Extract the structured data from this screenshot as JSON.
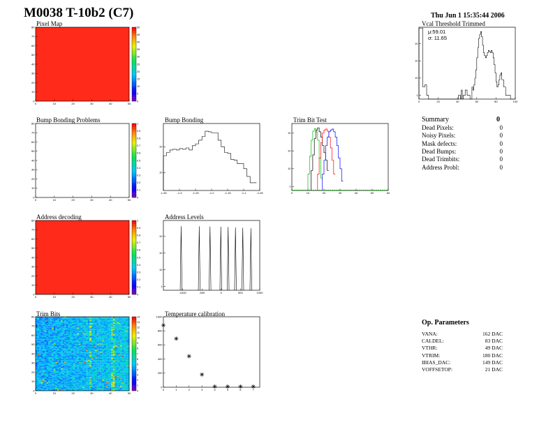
{
  "header": {
    "title": "M0038 T-10b2 (C7)",
    "date": "Thu Jun  1 15:35:44 2006"
  },
  "colors": {
    "map_red": "#ff2a1a",
    "line_black": "#000000",
    "trim_green": "#00c000",
    "trim_red": "#ff0000",
    "trim_blue": "#0000ff"
  },
  "chart_data": [
    {
      "id": "pixel_map",
      "type": "heatmap",
      "title": "Pixel Map",
      "x_ticks": [
        "0",
        "10",
        "20",
        "30",
        "40",
        "50"
      ],
      "y_ticks": [
        "0",
        "10",
        "20",
        "30",
        "40",
        "50",
        "60",
        "70",
        "80"
      ],
      "z_ticks": [
        "0",
        "5",
        "10",
        "15",
        "20",
        "25",
        "30",
        "35",
        "40",
        "45",
        "50"
      ],
      "uniform_value": 50
    },
    {
      "id": "vcal",
      "type": "line",
      "title": "Vcal Threshold Trimmed",
      "xlim": [
        0,
        100
      ],
      "log_y": true,
      "x_ticks": [
        "0",
        "20",
        "40",
        "60",
        "80",
        "100"
      ],
      "y_ticks": [
        "1",
        "10",
        "10",
        "10"
      ],
      "stats": [
        "μ:59.01",
        "σ: 11.65"
      ],
      "x": [
        0,
        3,
        4,
        6,
        8,
        10,
        13,
        16,
        18,
        21,
        25,
        28,
        30,
        31,
        33,
        35,
        36,
        38,
        41,
        43,
        44,
        45,
        46,
        48,
        50,
        53,
        55,
        56,
        57,
        58,
        59,
        60,
        61,
        62,
        63,
        64,
        65,
        66,
        67,
        68,
        69,
        70,
        71,
        72,
        73,
        74,
        75,
        76,
        77,
        78,
        79,
        80,
        81,
        82,
        83,
        84,
        85,
        86,
        88,
        90,
        92,
        95,
        100
      ],
      "y": [
        8000,
        8000,
        3,
        4,
        1,
        0,
        0,
        0,
        0,
        0,
        0,
        0,
        0,
        0,
        0,
        0,
        0,
        0,
        1,
        0,
        2,
        0,
        1,
        2,
        1,
        0,
        3,
        2,
        4,
        10,
        30,
        150,
        600,
        2000,
        3500,
        5000,
        2500,
        800,
        300,
        200,
        150,
        200,
        300,
        400,
        350,
        300,
        400,
        300,
        150,
        60,
        20,
        6,
        3,
        4,
        8,
        15,
        20,
        8,
        3,
        1,
        1,
        0,
        0
      ]
    },
    {
      "id": "bump_problems",
      "type": "heatmap",
      "title": "Bump Bonding Problems",
      "x_ticks": [
        "0",
        "10",
        "20",
        "30",
        "40",
        "50"
      ],
      "y_ticks": [
        "0",
        "10",
        "20",
        "30",
        "40",
        "50",
        "60",
        "70",
        "80"
      ],
      "z_ticks": [
        "0",
        "0.1",
        "0.2",
        "0.3",
        "0.4",
        "0.5",
        "0.6",
        "0.7",
        "0.8",
        "0.9",
        "1"
      ],
      "uniform_value": 0
    },
    {
      "id": "bump_bonding",
      "type": "line",
      "title": "Bump Bonding",
      "xlim": [
        -1.35,
        -1.05
      ],
      "log_y": true,
      "x_ticks": [
        "-1.35",
        "-1.3",
        "-1.25",
        "-1.2",
        "-1.15",
        "-1.1",
        "-1.05"
      ],
      "y_ticks": [
        "10",
        "10"
      ],
      "x": [
        -1.35,
        -1.34,
        -1.33,
        -1.32,
        -1.31,
        -1.3,
        -1.29,
        -1.28,
        -1.27,
        -1.26,
        -1.25,
        -1.24,
        -1.23,
        -1.22,
        -1.21,
        -1.2,
        -1.19,
        -1.18,
        -1.17,
        -1.16,
        -1.15,
        -1.14,
        -1.13,
        -1.12,
        -1.11,
        -1.1,
        -1.09,
        -1.08,
        -1.07
      ],
      "y": [
        45,
        60,
        75,
        80,
        75,
        85,
        80,
        90,
        75,
        110,
        130,
        180,
        250,
        400,
        380,
        350,
        350,
        180,
        100,
        60,
        55,
        32,
        30,
        22,
        22,
        14,
        7,
        4,
        4
      ]
    },
    {
      "id": "trim_bit_test",
      "type": "line",
      "title": "Trim Bit Test",
      "xlim": [
        0,
        60
      ],
      "log_y": true,
      "x_ticks": [
        "0",
        "10",
        "20",
        "30",
        "40",
        "50",
        "60"
      ],
      "y_ticks": [
        "1",
        "10",
        "10",
        "10"
      ],
      "series": [
        {
          "color": "green",
          "x": [
            10,
            11,
            12,
            13,
            14,
            15,
            16,
            17,
            18
          ],
          "y": [
            5,
            50,
            400,
            1300,
            1800,
            1200,
            400,
            40,
            3
          ]
        },
        {
          "color": "black",
          "x": [
            12,
            13,
            14,
            15,
            16,
            17,
            18,
            19,
            20,
            21,
            22
          ],
          "y": [
            8,
            60,
            500,
            1500,
            2000,
            1200,
            600,
            200,
            80,
            30,
            8
          ]
        },
        {
          "color": "red",
          "x": [
            16,
            17,
            18,
            19,
            20,
            21,
            22,
            23,
            24,
            25,
            26
          ],
          "y": [
            5,
            40,
            300,
            1000,
            1500,
            1700,
            1300,
            600,
            150,
            30,
            5
          ]
        },
        {
          "color": "blue",
          "x": [
            19,
            20,
            21,
            22,
            23,
            24,
            25,
            26,
            27,
            28,
            29,
            30,
            31
          ],
          "y": [
            5,
            30,
            200,
            600,
            1200,
            1500,
            1700,
            1200,
            600,
            200,
            40,
            10,
            2
          ]
        }
      ]
    },
    {
      "id": "address_decoding",
      "type": "heatmap",
      "title": "Address decoding",
      "x_ticks": [
        "0",
        "10",
        "20",
        "30",
        "40",
        "50"
      ],
      "y_ticks": [
        "0",
        "10",
        "20",
        "30",
        "40",
        "50",
        "60",
        "70",
        "80"
      ],
      "z_ticks": [
        "0",
        "0.1",
        "0.2",
        "0.3",
        "0.4",
        "0.5",
        "0.6",
        "0.7",
        "0.8",
        "0.9",
        "1"
      ],
      "uniform_value": 1
    },
    {
      "id": "address_levels",
      "type": "line",
      "title": "Address Levels",
      "xlim": [
        -1500,
        1000
      ],
      "log_y": true,
      "x_ticks": [
        "-1000",
        "-500",
        "0",
        "500",
        "1000"
      ],
      "y_ticks": [
        "1",
        "10",
        "10",
        "10"
      ],
      "x": [
        -1040,
        -570,
        -290,
        -10,
        180,
        370,
        560,
        770
      ],
      "y": [
        4100,
        4000,
        3900,
        3800,
        3700,
        3500,
        3300,
        3100
      ]
    },
    {
      "id": "trim_bits",
      "type": "heatmap",
      "title": "Trim Bits",
      "x_ticks": [
        "0",
        "10",
        "20",
        "30",
        "40",
        "50"
      ],
      "y_ticks": [
        "0",
        "10",
        "20",
        "30",
        "40",
        "50",
        "60",
        "70",
        "80"
      ],
      "z_ticks": [
        "0",
        "1",
        "2",
        "3",
        "4",
        "5",
        "6",
        "7",
        "8",
        "9",
        "10",
        "11",
        "12",
        "13",
        "14"
      ]
    },
    {
      "id": "temp_calibration",
      "type": "scatter",
      "title": "Temperature calibration",
      "xlim": [
        0,
        7.5
      ],
      "ylim": [
        0,
        1000
      ],
      "x_ticks": [
        "0",
        "1",
        "2",
        "3",
        "4",
        "5",
        "6",
        "7"
      ],
      "y_ticks": [
        "0",
        "200",
        "400",
        "600",
        "800",
        "1000"
      ],
      "x": [
        0,
        1,
        2,
        3,
        4,
        5,
        6,
        7
      ],
      "y": [
        880,
        690,
        440,
        180,
        10,
        10,
        10,
        10
      ]
    }
  ],
  "summary": {
    "title": "Summary",
    "total": "0",
    "rows": [
      {
        "label": "Dead Pixels:",
        "value": "0"
      },
      {
        "label": "Noisy Pixels:",
        "value": "0"
      },
      {
        "label": "Mask defects:",
        "value": "0"
      },
      {
        "label": "Dead Bumps:",
        "value": "0"
      },
      {
        "label": "Dead Trimbits:",
        "value": "0"
      },
      {
        "label": "Address Probl:",
        "value": "0"
      }
    ]
  },
  "op_params": {
    "title": "Op. Parameters",
    "rows": [
      {
        "label": "VANA:",
        "value": "162 DAC"
      },
      {
        "label": "CALDEL:",
        "value": "83 DAC"
      },
      {
        "label": "VTHR:",
        "value": "49 DAC"
      },
      {
        "label": "VTRIM:",
        "value": "180 DAC"
      },
      {
        "label": "IBIAS_DAC:",
        "value": "149 DAC"
      },
      {
        "label": "VOFFSETOP:",
        "value": "21 DAC"
      }
    ]
  }
}
